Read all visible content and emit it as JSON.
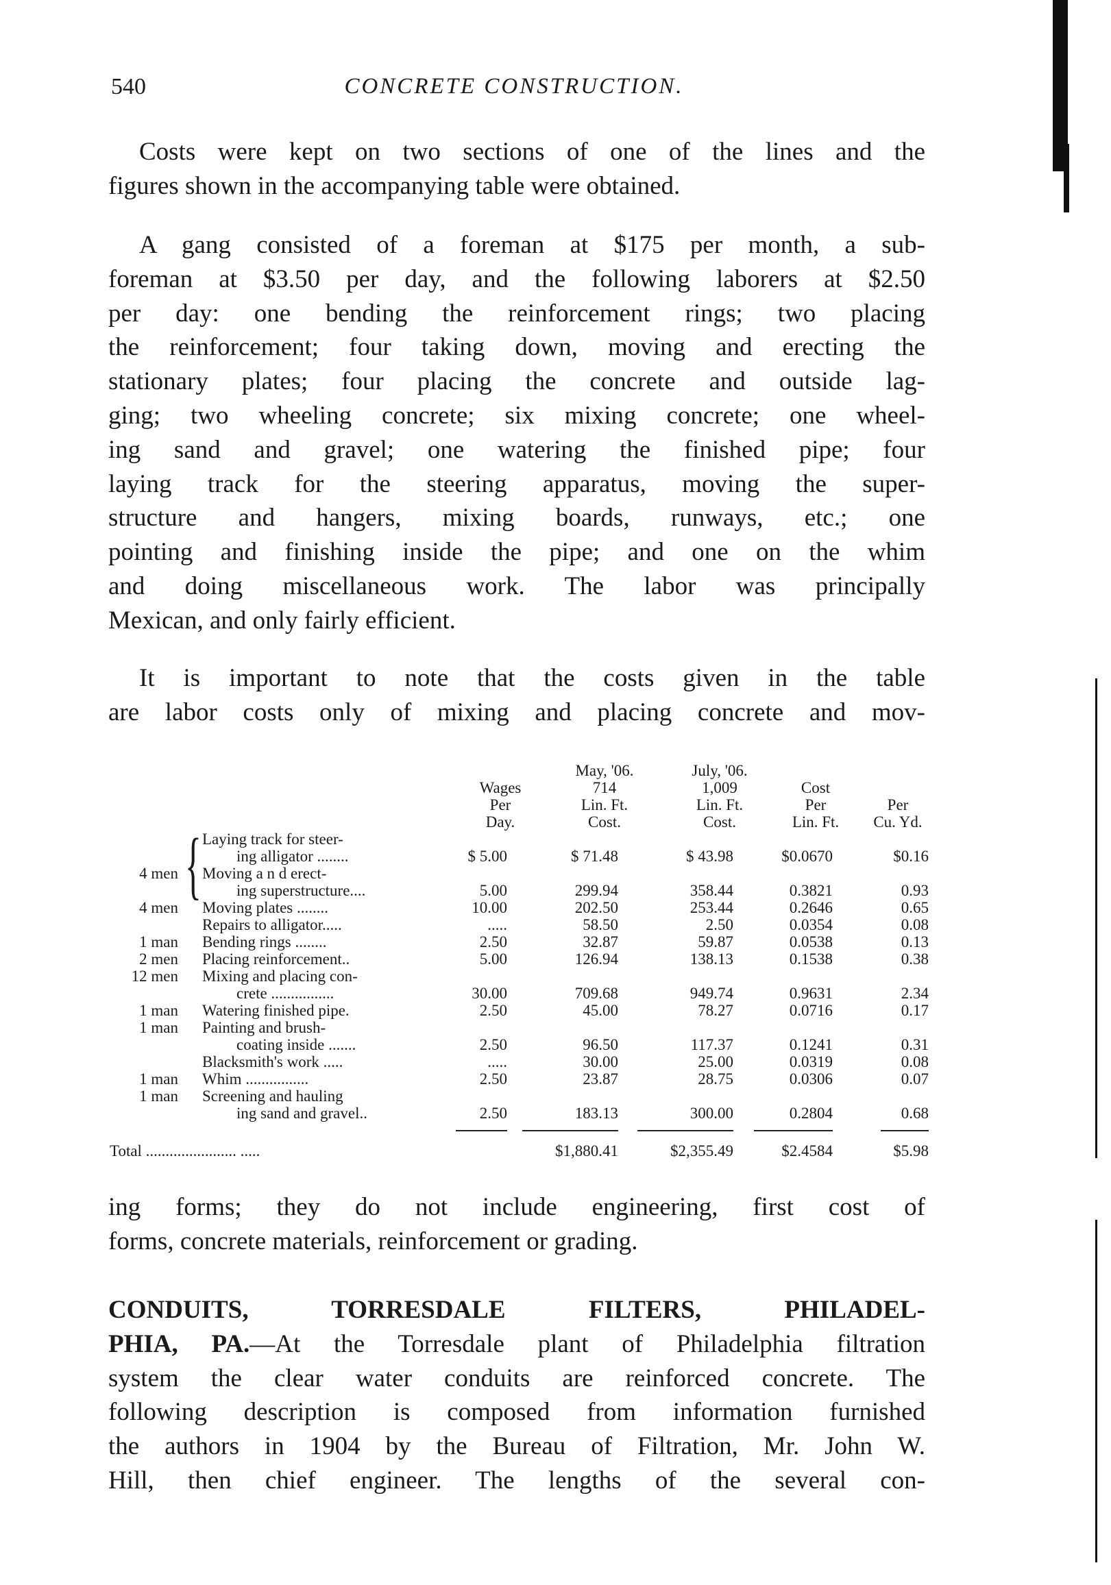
{
  "header": {
    "page_number": "540",
    "running_title": "CONCRETE CONSTRUCTION."
  },
  "paragraphs": {
    "p1": [
      "Costs were kept on two sections of one of the lines and the",
      "figures shown in the accompanying table were obtained."
    ],
    "p2": [
      "A gang consisted of a foreman at $175 per month, a sub-",
      "foreman at $3.50 per day, and the following laborers at $2.50",
      "per day: one bending the reinforcement rings; two placing",
      "the reinforcement; four taking down, moving and erecting the",
      "stationary plates; four placing the concrete and outside lag-",
      "ging; two wheeling concrete; six mixing concrete; one wheel-",
      "ing sand and gravel; one watering the finished pipe; four",
      "laying track for the steering apparatus, moving the super-",
      "structure and hangers, mixing boards, runways, etc.; one",
      "pointing and finishing inside the pipe; and one on the whim",
      "and doing miscellaneous work.  The labor was principally",
      "Mexican, and only fairly efficient."
    ],
    "p3": [
      "It is important to note that the costs given in the table",
      "are labor costs only of mixing and placing concrete and mov-"
    ],
    "p3_cont": [
      "ing forms; they do not include engineering, first cost of",
      "forms, concrete materials, reinforcement or grading."
    ],
    "p4_heading": "CONDUITS, TORRESDALE FILTERS, PHILADEL-",
    "p4_heading_end": "PHIA, PA.",
    "p4": [
      "—At the Torresdale plant of Philadelphia filtration",
      "system the clear water conduits are reinforced concrete. The",
      "following description is composed from information furnished",
      "the authors in 1904 by the Bureau of Filtration, Mr. John W.",
      "Hill, then chief engineer.  The lengths of the several con-"
    ]
  },
  "table": {
    "headers": {
      "wages": [
        "",
        "Wages",
        "Per",
        "Day."
      ],
      "may": [
        "May, '06.",
        "714",
        "Lin. Ft.",
        "Cost."
      ],
      "july": [
        "July, '06.",
        "1,009",
        "Lin. Ft.",
        "Cost."
      ],
      "per_ft": [
        "",
        "Cost",
        "Per",
        "Lin. Ft."
      ],
      "per_yd": [
        "",
        "",
        "Per",
        "Cu. Yd."
      ]
    },
    "rows": [
      {
        "count": "4 men",
        "label": [
          "Laying track for steer-",
          "ing alligator ........"
        ],
        "wages": "$ 5.00",
        "may": "$ 71.48",
        "july": "$ 43.98",
        "per_ft": "$0.0670",
        "per_yd": "$0.16"
      },
      {
        "count": "",
        "label": [
          "Moving   a n d   erect-",
          "ing superstructure...."
        ],
        "wages": "5.00",
        "may": "299.94",
        "july": "358.44",
        "per_ft": "0.3821",
        "per_yd": "0.93"
      },
      {
        "count": "4 men",
        "label": [
          "Moving plates ........"
        ],
        "wages": "10.00",
        "may": "202.50",
        "july": "253.44",
        "per_ft": "0.2646",
        "per_yd": "0.65"
      },
      {
        "count": "",
        "label": [
          "Repairs to alligator....."
        ],
        "wages": ".....",
        "may": "58.50",
        "july": "2.50",
        "per_ft": "0.0354",
        "per_yd": "0.08"
      },
      {
        "count": "1 man",
        "label": [
          "Bending rings ........"
        ],
        "wages": "2.50",
        "may": "32.87",
        "july": "59.87",
        "per_ft": "0.0538",
        "per_yd": "0.13"
      },
      {
        "count": "2 men",
        "label": [
          "Placing reinforcement.."
        ],
        "wages": "5.00",
        "may": "126.94",
        "july": "138.13",
        "per_ft": "0.1538",
        "per_yd": "0.38"
      },
      {
        "count": "12 men",
        "label": [
          "Mixing and placing con-",
          "crete ................"
        ],
        "wages": "30.00",
        "may": "709.68",
        "july": "949.74",
        "per_ft": "0.9631",
        "per_yd": "2.34"
      },
      {
        "count": "1 man",
        "label": [
          "Watering finished pipe."
        ],
        "wages": "2.50",
        "may": "45.00",
        "july": "78.27",
        "per_ft": "0.0716",
        "per_yd": "0.17"
      },
      {
        "count": "1 man",
        "label": [
          "Painting  and  brush-",
          "coating inside ......."
        ],
        "wages": "2.50",
        "may": "96.50",
        "july": "117.37",
        "per_ft": "0.1241",
        "per_yd": "0.31"
      },
      {
        "count": "",
        "label": [
          "Blacksmith's work ....."
        ],
        "wages": ".....",
        "may": "30.00",
        "july": "25.00",
        "per_ft": "0.0319",
        "per_yd": "0.08"
      },
      {
        "count": "1 man",
        "label": [
          "Whim ................"
        ],
        "wages": "2.50",
        "may": "23.87",
        "july": "28.75",
        "per_ft": "0.0306",
        "per_yd": "0.07"
      },
      {
        "count": "1 man",
        "label": [
          "Screening and  hauling",
          "ing sand and gravel.."
        ],
        "wages": "2.50",
        "may": "183.13",
        "july": "300.00",
        "per_ft": "0.2804",
        "per_yd": "0.68"
      }
    ],
    "total": {
      "label": "Total ....................... .....",
      "may": "$1,880.41",
      "july": "$2,355.49",
      "per_ft": "$2.4584",
      "per_yd": "$5.98"
    }
  }
}
